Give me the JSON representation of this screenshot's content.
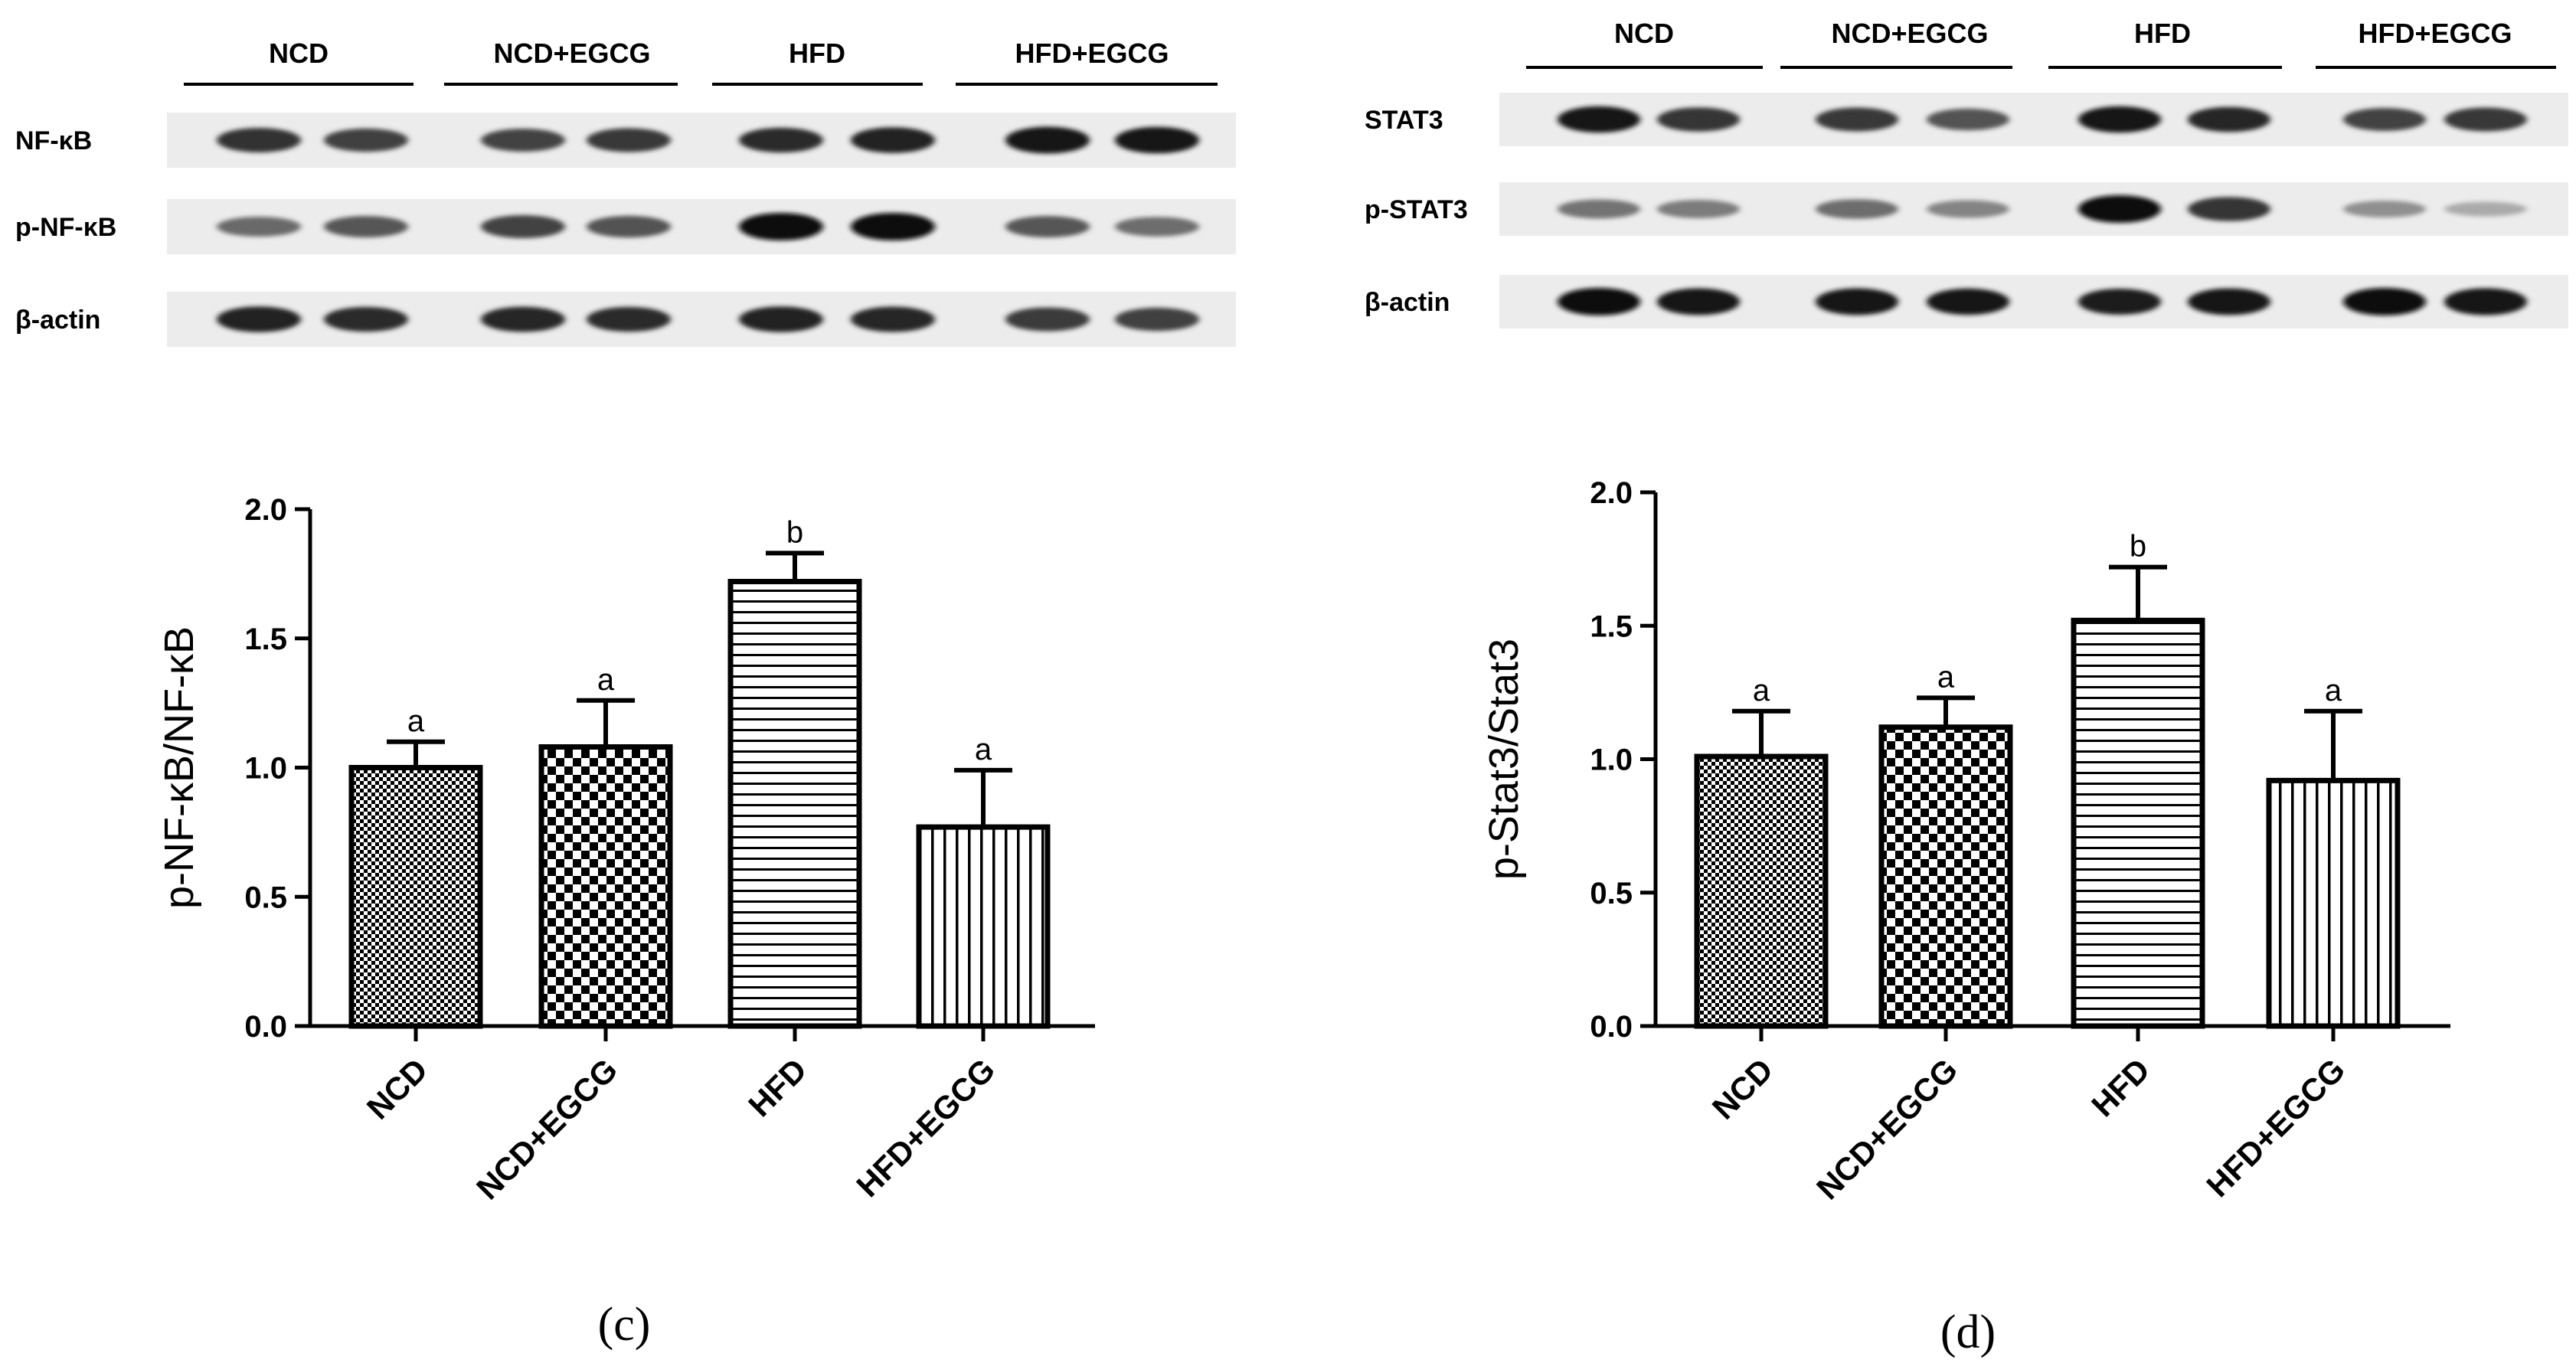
{
  "panels": [
    {
      "id": "c",
      "caption": "(c)",
      "blot": {
        "lane_groups": [
          "NCD",
          "NCD+EGCG",
          "HFD",
          "HFD+EGCG"
        ],
        "rows": [
          {
            "label": "NF-κB",
            "intensity": [
              0.8,
              0.72,
              0.7,
              0.76,
              0.82,
              0.88,
              0.95,
              0.93
            ]
          },
          {
            "label": "p-NF-κB",
            "intensity": [
              0.5,
              0.6,
              0.7,
              0.62,
              1.0,
              1.0,
              0.6,
              0.48
            ]
          },
          {
            "label": "β-actin",
            "intensity": [
              0.88,
              0.82,
              0.85,
              0.82,
              0.88,
              0.86,
              0.75,
              0.72
            ]
          }
        ]
      },
      "chart_data": {
        "type": "bar",
        "categories": [
          "NCD",
          "NCD+EGCG",
          "HFD",
          "HFD+EGCG"
        ],
        "values": [
          1.0,
          1.08,
          1.72,
          0.77
        ],
        "errors": [
          0.1,
          0.18,
          0.11,
          0.22
        ],
        "significance": [
          "a",
          "a",
          "b",
          "a"
        ],
        "patterns": [
          "fine-check",
          "checker",
          "horizontal-lines",
          "vertical-lines"
        ],
        "ylabel": "p-NF-κB/NF-κB",
        "ylim": [
          0,
          2.0
        ],
        "yticks": [
          "0.0",
          "0.5",
          "1.0",
          "1.5",
          "2.0"
        ]
      }
    },
    {
      "id": "d",
      "caption": "(d)",
      "blot": {
        "lane_groups": [
          "NCD",
          "NCD+EGCG",
          "HFD",
          "HFD+EGCG"
        ],
        "rows": [
          {
            "label": "STAT3",
            "intensity": [
              0.92,
              0.78,
              0.76,
              0.62,
              0.92,
              0.84,
              0.7,
              0.76
            ]
          },
          {
            "label": "p-STAT3",
            "intensity": [
              0.45,
              0.4,
              0.48,
              0.36,
              1.0,
              0.78,
              0.3,
              0.16
            ]
          },
          {
            "label": "β-actin",
            "intensity": [
              1.0,
              0.95,
              0.95,
              0.92,
              0.9,
              0.94,
              1.0,
              0.96
            ]
          }
        ]
      },
      "chart_data": {
        "type": "bar",
        "categories": [
          "NCD",
          "NCD+EGCG",
          "HFD",
          "HFD+EGCG"
        ],
        "values": [
          1.01,
          1.12,
          1.52,
          0.92
        ],
        "errors": [
          0.17,
          0.11,
          0.2,
          0.26
        ],
        "significance": [
          "a",
          "a",
          "b",
          "a"
        ],
        "patterns": [
          "fine-check",
          "checker",
          "horizontal-lines",
          "vertical-lines"
        ],
        "ylabel": "p-Stat3/Stat3",
        "ylim": [
          0,
          2.0
        ],
        "yticks": [
          "0.0",
          "0.5",
          "1.0",
          "1.5",
          "2.0"
        ]
      }
    }
  ]
}
